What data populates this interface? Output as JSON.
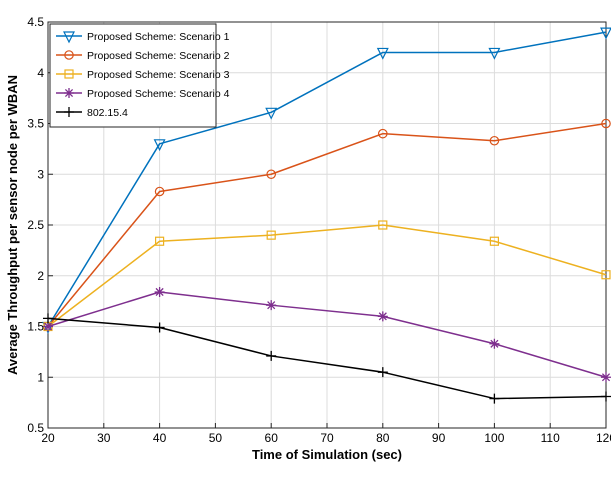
{
  "chart_data": {
    "type": "line",
    "title": "",
    "xlabel": "Time of Simulation (sec)",
    "ylabel": "Average Throughput per sensor node per WBAN",
    "xlim": [
      20,
      120
    ],
    "ylim": [
      0.5,
      4.5
    ],
    "xticks": [
      "20",
      "30",
      "40",
      "50",
      "60",
      "70",
      "80",
      "90",
      "100",
      "110",
      "120"
    ],
    "yticks": [
      "0.5",
      "1",
      "1.5",
      "2",
      "2.5",
      "3",
      "3.5",
      "4",
      "4.5"
    ],
    "grid": true,
    "legend_position": "top-left",
    "x": [
      20,
      40,
      60,
      80,
      100,
      120
    ],
    "series": [
      {
        "name": "Proposed Scheme: Scenario 1",
        "color": "#0072BD",
        "marker": "triangle-down",
        "values": [
          1.5,
          3.3,
          3.61,
          4.2,
          4.2,
          4.4
        ]
      },
      {
        "name": "Proposed Scheme: Scenario 2",
        "color": "#D95319",
        "marker": "circle",
        "values": [
          1.5,
          2.83,
          3.0,
          3.4,
          3.33,
          3.5
        ]
      },
      {
        "name": "Proposed Scheme: Scenario 3",
        "color": "#EDB120",
        "marker": "square",
        "values": [
          1.5,
          2.34,
          2.4,
          2.5,
          2.34,
          2.01
        ]
      },
      {
        "name": "Proposed Scheme: Scenario 4",
        "color": "#7E2F8E",
        "marker": "asterisk",
        "values": [
          1.5,
          1.84,
          1.71,
          1.6,
          1.33,
          1.0
        ]
      },
      {
        "name": "802.15.4",
        "color": "#000000",
        "marker": "plus",
        "values": [
          1.58,
          1.49,
          1.21,
          1.05,
          0.79,
          0.81
        ]
      }
    ]
  }
}
